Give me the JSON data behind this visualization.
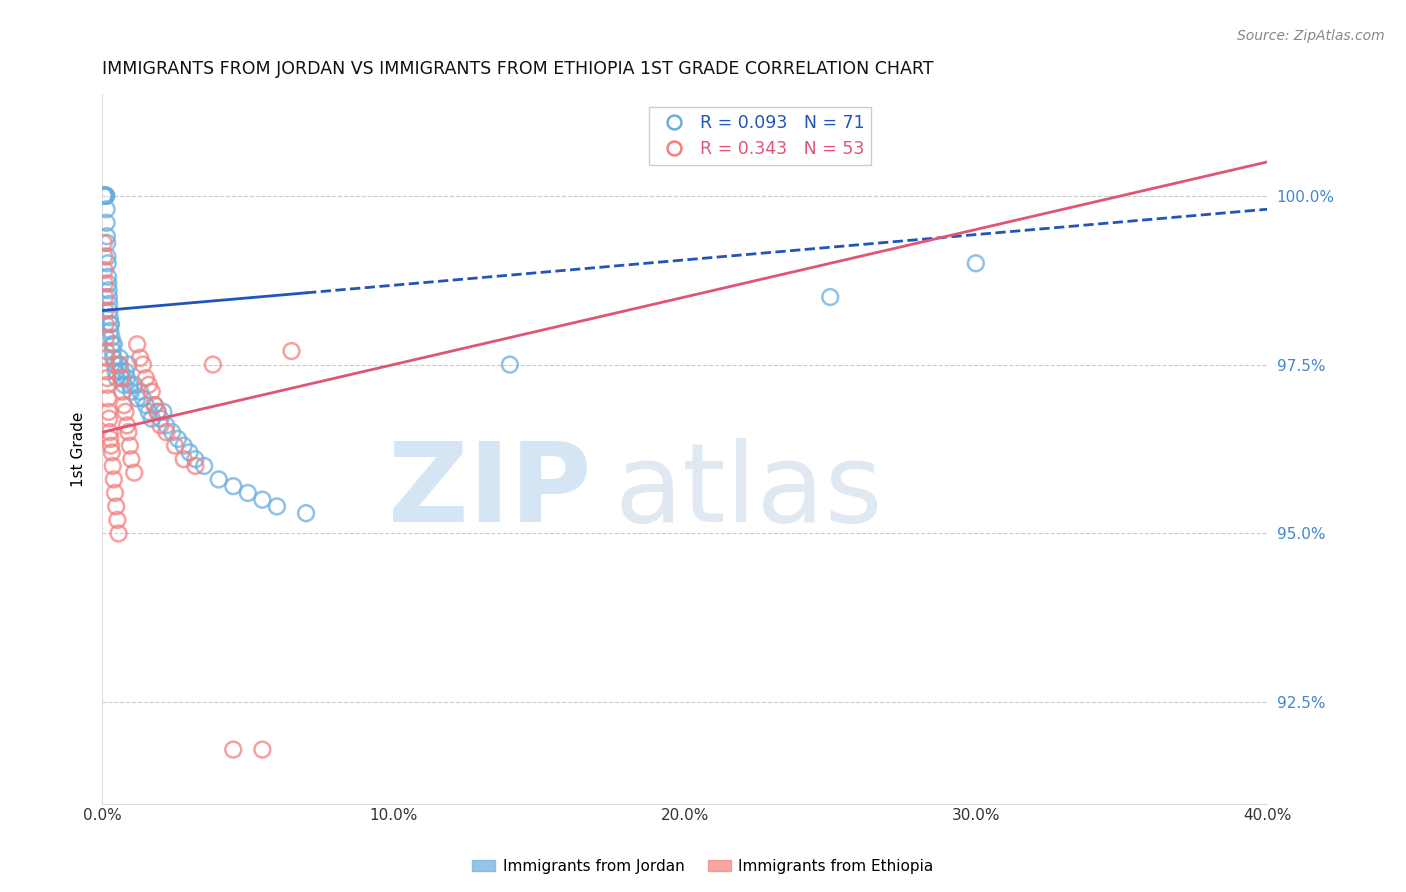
{
  "title": "IMMIGRANTS FROM JORDAN VS IMMIGRANTS FROM ETHIOPIA 1ST GRADE CORRELATION CHART",
  "source": "Source: ZipAtlas.com",
  "ylabel": "1st Grade",
  "xlim": [
    0.0,
    40.0
  ],
  "ylim": [
    91.0,
    101.5
  ],
  "y_ticks": [
    92.5,
    95.0,
    97.5,
    100.0
  ],
  "jordan_color": "#6aaedd",
  "ethiopia_color": "#f48080",
  "jordan_line_color": "#2255bb",
  "ethiopia_line_color": "#e05575",
  "jordan_R": 0.093,
  "jordan_N": 71,
  "ethiopia_R": 0.343,
  "ethiopia_N": 53,
  "jordan_x": [
    0.05,
    0.07,
    0.08,
    0.09,
    0.1,
    0.1,
    0.11,
    0.12,
    0.13,
    0.14,
    0.15,
    0.15,
    0.16,
    0.17,
    0.18,
    0.19,
    0.2,
    0.21,
    0.22,
    0.23,
    0.24,
    0.25,
    0.26,
    0.27,
    0.28,
    0.3,
    0.32,
    0.34,
    0.36,
    0.38,
    0.4,
    0.43,
    0.46,
    0.5,
    0.55,
    0.6,
    0.65,
    0.7,
    0.75,
    0.8,
    0.85,
    0.9,
    0.95,
    1.0,
    1.1,
    1.2,
    1.3,
    1.4,
    1.5,
    1.6,
    1.7,
    1.8,
    1.9,
    2.0,
    2.1,
    2.2,
    2.4,
    2.6,
    2.8,
    3.0,
    3.2,
    3.5,
    4.0,
    4.5,
    5.0,
    5.5,
    6.0,
    7.0,
    14.0,
    25.0,
    30.0
  ],
  "jordan_y": [
    100.0,
    100.0,
    100.0,
    100.0,
    100.0,
    100.0,
    100.0,
    100.0,
    100.0,
    100.0,
    99.8,
    99.6,
    99.4,
    99.3,
    99.1,
    99.0,
    98.8,
    98.7,
    98.6,
    98.5,
    98.4,
    98.3,
    98.2,
    98.1,
    98.0,
    98.1,
    97.9,
    97.8,
    97.7,
    97.6,
    97.8,
    97.5,
    97.4,
    97.3,
    97.5,
    97.6,
    97.4,
    97.3,
    97.2,
    97.4,
    97.3,
    97.5,
    97.2,
    97.1,
    97.2,
    97.0,
    97.1,
    97.0,
    96.9,
    96.8,
    96.7,
    96.9,
    96.8,
    96.7,
    96.8,
    96.6,
    96.5,
    96.4,
    96.3,
    96.2,
    96.1,
    96.0,
    95.8,
    95.7,
    95.6,
    95.5,
    95.4,
    95.3,
    97.5,
    98.5,
    99.0
  ],
  "ethiopia_x": [
    0.05,
    0.07,
    0.08,
    0.09,
    0.1,
    0.11,
    0.12,
    0.13,
    0.14,
    0.15,
    0.16,
    0.17,
    0.18,
    0.2,
    0.22,
    0.24,
    0.26,
    0.28,
    0.3,
    0.33,
    0.36,
    0.4,
    0.44,
    0.48,
    0.52,
    0.56,
    0.6,
    0.65,
    0.7,
    0.75,
    0.8,
    0.85,
    0.9,
    0.95,
    1.0,
    1.1,
    1.2,
    1.3,
    1.4,
    1.5,
    1.6,
    1.7,
    1.8,
    1.9,
    2.0,
    2.2,
    2.5,
    2.8,
    3.2,
    3.8,
    4.5,
    5.5,
    6.5
  ],
  "ethiopia_y": [
    99.3,
    99.1,
    98.9,
    98.7,
    98.5,
    98.3,
    98.1,
    97.9,
    97.7,
    97.6,
    97.4,
    97.3,
    97.2,
    97.0,
    96.8,
    96.7,
    96.5,
    96.4,
    96.3,
    96.2,
    96.0,
    95.8,
    95.6,
    95.4,
    95.2,
    95.0,
    97.5,
    97.3,
    97.1,
    96.9,
    96.8,
    96.6,
    96.5,
    96.3,
    96.1,
    95.9,
    97.8,
    97.6,
    97.5,
    97.3,
    97.2,
    97.1,
    96.9,
    96.8,
    96.6,
    96.5,
    96.3,
    96.1,
    96.0,
    97.5,
    91.8,
    91.8,
    97.7
  ],
  "jordan_line": {
    "x0": 0.0,
    "x1": 40.0,
    "y0": 98.3,
    "y1": 99.8
  },
  "jordan_solid_end": 7.0,
  "ethiopia_line": {
    "x0": 0.0,
    "x1": 40.0,
    "y0": 96.5,
    "y1": 100.5
  }
}
